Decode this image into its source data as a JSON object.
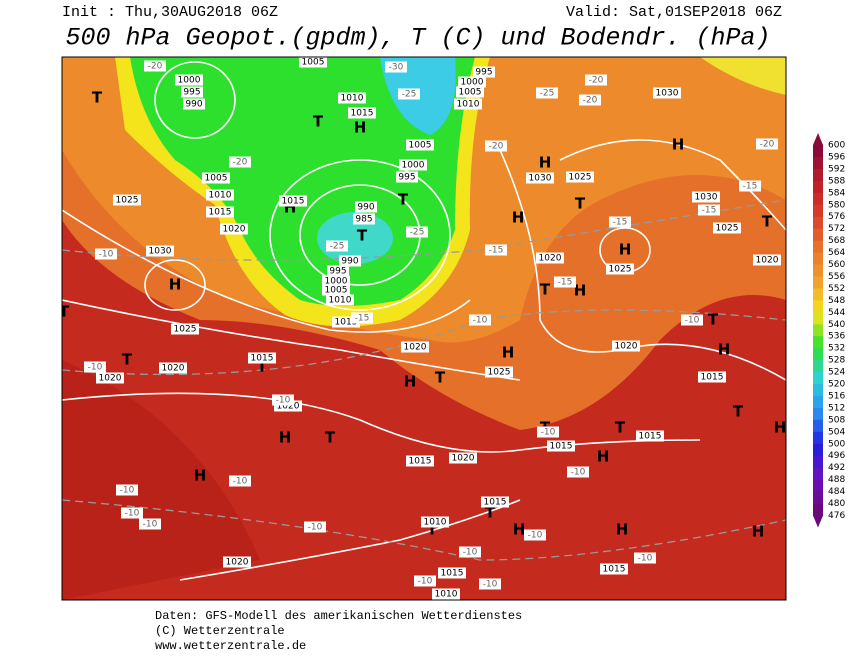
{
  "header": {
    "init": "Init : Thu,30AUG2018 06Z",
    "valid": "Valid: Sat,01SEP2018 06Z",
    "title": "500 hPa Geopot.(gpdm), T (C) und Bodendr. (hPa)"
  },
  "colorbar": {
    "ticks": [
      600,
      596,
      592,
      588,
      584,
      580,
      576,
      572,
      568,
      564,
      560,
      556,
      552,
      548,
      544,
      540,
      536,
      532,
      528,
      524,
      520,
      516,
      512,
      508,
      504,
      500,
      496,
      492,
      488,
      484,
      480,
      476
    ]
  },
  "map": {
    "labels": [
      "T",
      "T",
      "H",
      "H",
      "T",
      "T",
      "H",
      "T",
      "H",
      "H",
      "H",
      "T",
      "H",
      "T",
      "T",
      "H",
      "T",
      "H",
      "T",
      "H",
      "T",
      "H",
      "T",
      "H",
      "H",
      "T",
      "T",
      "H",
      "T",
      "H",
      "T",
      "H",
      "H",
      "H",
      "T",
      "T",
      "1000",
      "995",
      "990",
      "1005",
      "1010",
      "1015",
      "1005",
      "1000",
      "995",
      "990",
      "985",
      "990",
      "995",
      "1000",
      "1005",
      "1010",
      "1015",
      "1000",
      "1005",
      "1010",
      "995",
      "1005",
      "1010",
      "1015",
      "1020",
      "1015",
      "1025",
      "1030",
      "1025",
      "1020",
      "1020",
      "1015",
      "1020",
      "1020",
      "1025",
      "1020",
      "1015",
      "1020",
      "1025",
      "1030",
      "1025",
      "1030",
      "1030",
      "1025",
      "1020",
      "1015",
      "1015",
      "1015",
      "1020",
      "1015",
      "1010",
      "1015",
      "1010",
      "1015",
      "1020",
      "-20",
      "-30",
      "-25",
      "-25",
      "-20",
      "-20",
      "-20",
      "-20",
      "-25",
      "-25",
      "-15",
      "-10",
      "-15",
      "-15",
      "-15",
      "-15",
      "-20",
      "-15",
      "-10",
      "-10",
      "-10",
      "-10",
      "-10",
      "-10",
      "-10",
      "-10",
      "-10",
      "-10",
      "-10",
      "-10",
      "-10",
      "-10",
      "-10",
      "-10"
    ]
  },
  "footer": [
    "Daten: GFS-Modell des amerikanischen Wetterdienstes",
    "(C) Wetterzentrale",
    "www.wetterzentrale.de"
  ]
}
